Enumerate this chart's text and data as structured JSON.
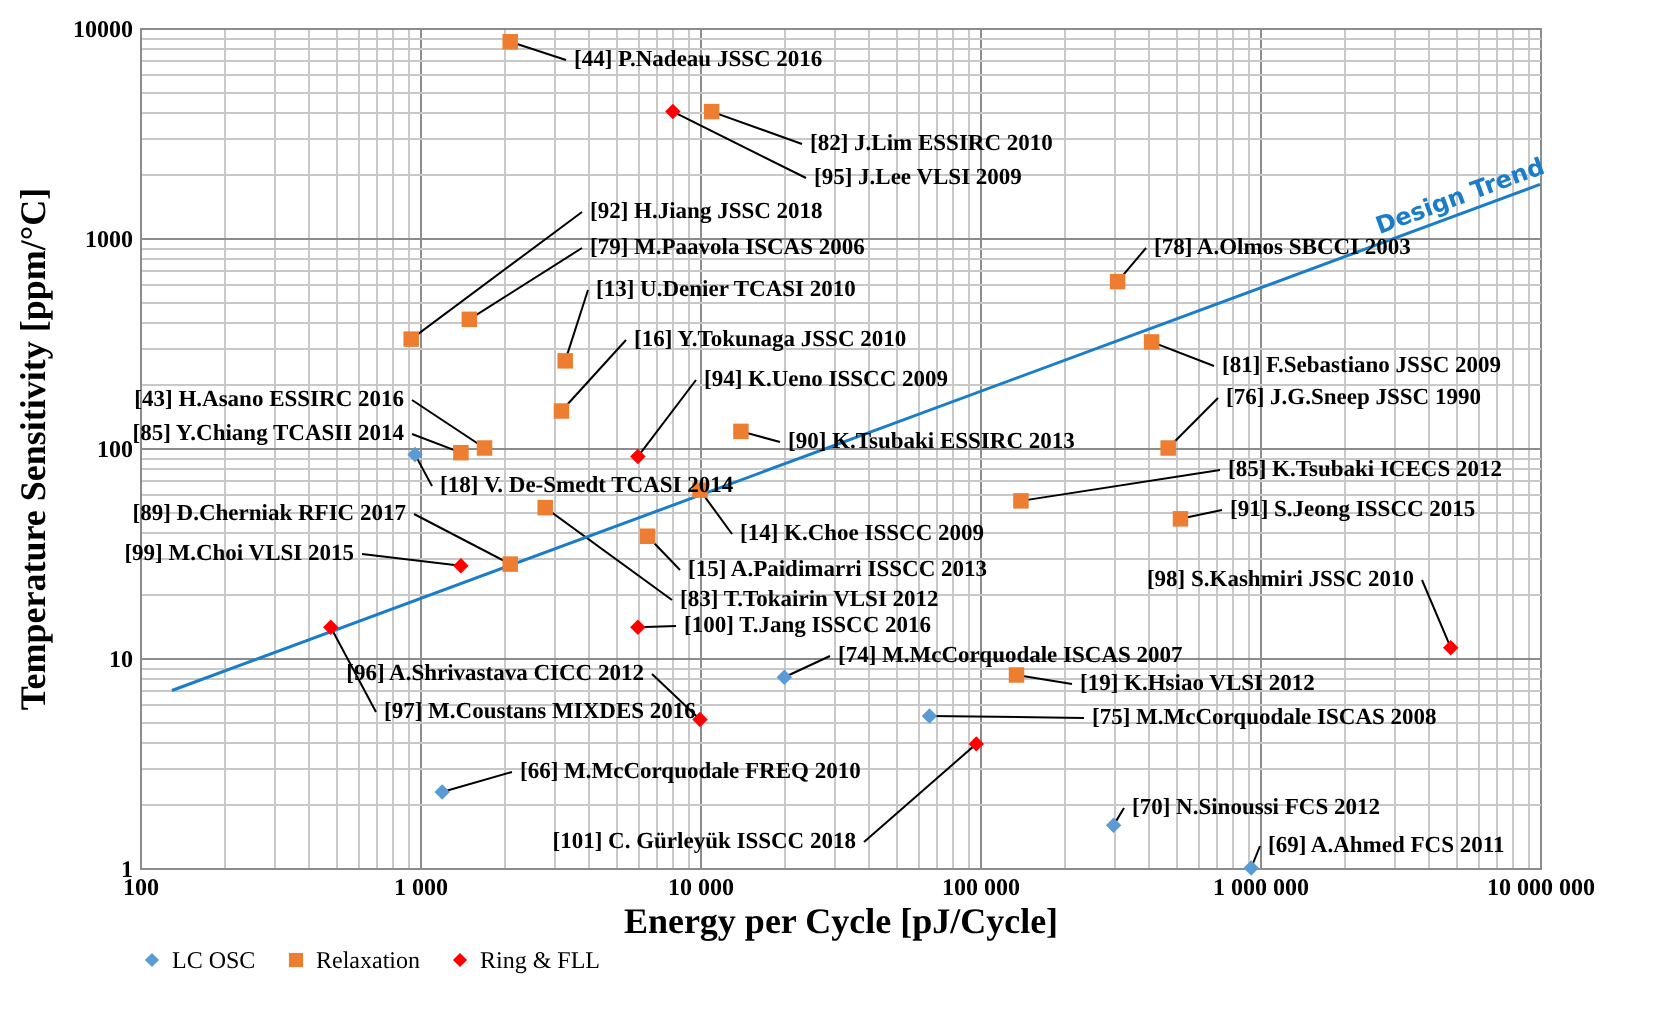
{
  "chart_data": {
    "type": "scatter",
    "xlabel": "Energy per Cycle [pJ/Cycle]",
    "ylabel": "Temperature Sensitivity [ppm/°C]",
    "log": "xy",
    "grid": true,
    "legend": "bottom",
    "xlim": [
      100,
      10000000
    ],
    "ylim": [
      1,
      10000
    ],
    "xticks": [
      100,
      {
        "value": 1000,
        "label": "1 000"
      },
      {
        "value": 10000,
        "label": "10 000"
      },
      {
        "value": 100000,
        "label": "100 000"
      },
      {
        "value": 1000000,
        "label": "1 000 000"
      },
      {
        "value": 10000000,
        "label": "10 000 000"
      }
    ],
    "yticks": [
      1,
      10,
      100,
      1000,
      10000
    ],
    "series": [
      {
        "name": "LC OSC",
        "color": "#5b9bd5",
        "marker": "diamond",
        "x": [
          960,
          20000,
          1200,
          66000,
          300000,
          930000
        ],
        "values": [
          93,
          8.1,
          2.3,
          5.3,
          1.6,
          1.0
        ]
      },
      {
        "name": "Relaxation",
        "color": "#ed7d31",
        "marker": "square",
        "x": [
          2100,
          11000,
          930,
          1500,
          3300,
          3200,
          14000,
          1700,
          1400,
          10000,
          2100,
          2800,
          6500,
          310000,
          410000,
          470000,
          140000,
          520000,
          135000
        ],
        "values": [
          8600,
          4000,
          330,
          410,
          260,
          150,
          120,
          100,
          95,
          63,
          28,
          52,
          38,
          620,
          320,
          100,
          56,
          46,
          8.3
        ]
      },
      {
        "name": "Ring & FLL",
        "color": "#ff0000",
        "marker": "diamond",
        "x": [
          8000,
          6000,
          1400,
          480,
          6000,
          10000,
          97000,
          4800000
        ],
        "values": [
          4000,
          91,
          27.5,
          14,
          14,
          5.1,
          3.9,
          11.2
        ]
      },
      {
        "name": "Design Trend",
        "type": "line",
        "color": "#1a7dc9",
        "x": [
          130,
          10000000
        ],
        "values": [
          7,
          1800
        ]
      }
    ],
    "annotations": [
      {
        "text": "[18]  V. De-Smedt TCASI 2014",
        "x": 960,
        "y": 93
      },
      {
        "text": "[74] M.McCorquodale ISCAS 2007",
        "x": 20000,
        "y": 8.1
      },
      {
        "text": "[66] M.McCorquodale FREQ 2010",
        "x": 1200,
        "y": 2.3
      },
      {
        "text": "[75] M.McCorquodale ISCAS 2008",
        "x": 66000,
        "y": 5.3
      },
      {
        "text": "[70]  N.Sinoussi FCS  2012",
        "x": 300000,
        "y": 1.6
      },
      {
        "text": "[69]  A.Ahmed FCS  2011",
        "x": 930000,
        "y": 1.0
      },
      {
        "text": "[44]  P.Nadeau JSSC 2016",
        "x": 2100,
        "y": 8600
      },
      {
        "text": "[82]  J.Lim ESSIRC 2010",
        "x": 11000,
        "y": 4000
      },
      {
        "text": "[92] H.Jiang JSSC 2018",
        "x": 930,
        "y": 330
      },
      {
        "text": "[79] M.Paavola ISCAS 2006",
        "x": 1500,
        "y": 410
      },
      {
        "text": "[13]  U.Denier TCASI 2010",
        "x": 3300,
        "y": 260
      },
      {
        "text": "[16] Y.Tokunaga JSSC 2010",
        "x": 3200,
        "y": 150
      },
      {
        "text": "[90]  K.Tsubaki ESSIRC 2013",
        "x": 14000,
        "y": 120
      },
      {
        "text": "[43]  H.Asano ESSIRC 2016",
        "x": 1700,
        "y": 100
      },
      {
        "text": "[85]  Y.Chiang TCASII 2014",
        "x": 1400,
        "y": 95
      },
      {
        "text": "[14] K.Choe ISSCC 2009",
        "x": 10000,
        "y": 63
      },
      {
        "text": "[89]  D.Cherniak RFIC 2017",
        "x": 2100,
        "y": 28
      },
      {
        "text": "[83]  T.Tokairin VLSI 2012",
        "x": 2800,
        "y": 52
      },
      {
        "text": "[15]  A.Paidimarri ISSCC 2013",
        "x": 6500,
        "y": 38
      },
      {
        "text": "[78] A.Olmos SBCCI 2003",
        "x": 310000,
        "y": 620
      },
      {
        "text": "[81]  F.Sebastiano JSSC 2009",
        "x": 410000,
        "y": 320
      },
      {
        "text": "[76] J.G.Sneep JSSC 1990",
        "x": 470000,
        "y": 100
      },
      {
        "text": "[85]  K.Tsubaki ICECS 2012",
        "x": 140000,
        "y": 56
      },
      {
        "text": "[91]  S.Jeong ISSCC 2015",
        "x": 520000,
        "y": 46
      },
      {
        "text": "[19]  K.Hsiao VLSI 2012",
        "x": 135000,
        "y": 8.3
      },
      {
        "text": "[95]  J.Lee VLSI 2009",
        "x": 8000,
        "y": 4000
      },
      {
        "text": "[94]  K.Ueno ISSCC 2009",
        "x": 6000,
        "y": 91
      },
      {
        "text": "[99] M.Choi VLSI 2015",
        "x": 1400,
        "y": 27.5
      },
      {
        "text": "[97] M.Coustans MIXDES 2016",
        "x": 480,
        "y": 14
      },
      {
        "text": "[100] T.Jang ISSCC 2016",
        "x": 6000,
        "y": 14
      },
      {
        "text": "[96] A.Shrivastava CICC 2012",
        "x": 10000,
        "y": 5.1
      },
      {
        "text": "[101] C. Gürleyük ISSCC 2018",
        "x": 97000,
        "y": 3.9
      },
      {
        "text": "[98] S.Kashmiri JSSC 2010",
        "x": 4800000,
        "y": 11.2
      }
    ]
  }
}
